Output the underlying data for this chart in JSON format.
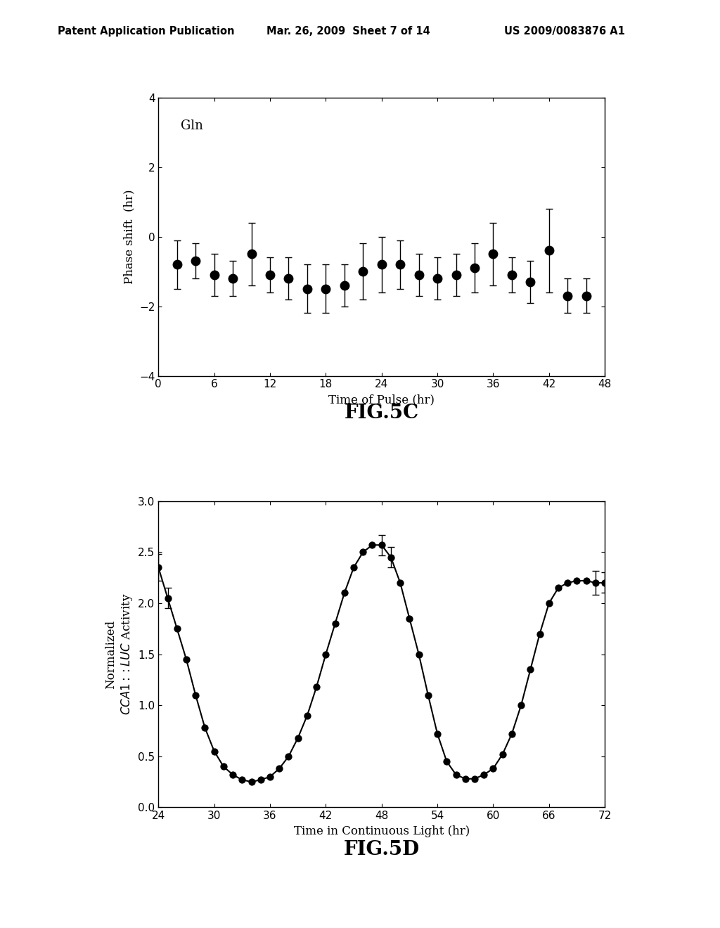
{
  "header_left": "Patent Application Publication",
  "header_mid": "Mar. 26, 2009  Sheet 7 of 14",
  "header_right": "US 2009/0083876 A1",
  "fig5c": {
    "title": "FIG.5C",
    "xlabel": "Time of Pulse (hr)",
    "ylabel": "Phase shift  (hr)",
    "label": "Gln",
    "xlim": [
      0,
      48
    ],
    "ylim": [
      -4,
      4
    ],
    "xticks": [
      0,
      6,
      12,
      18,
      24,
      30,
      36,
      42,
      48
    ],
    "yticks": [
      -4,
      -2,
      0,
      2,
      4
    ],
    "x": [
      2,
      4,
      6,
      8,
      10,
      12,
      14,
      16,
      18,
      20,
      22,
      24,
      26,
      28,
      30,
      32,
      34,
      36,
      38,
      40,
      42,
      44,
      46
    ],
    "y": [
      -0.8,
      -0.7,
      -1.1,
      -1.2,
      -0.5,
      -1.1,
      -1.2,
      -1.5,
      -1.5,
      -1.4,
      -1.0,
      -0.8,
      -0.8,
      -1.1,
      -1.2,
      -1.1,
      -0.9,
      -0.5,
      -1.1,
      -1.3,
      -0.4,
      -1.7,
      -1.7
    ],
    "yerr": [
      0.7,
      0.5,
      0.6,
      0.5,
      0.9,
      0.5,
      0.6,
      0.7,
      0.7,
      0.6,
      0.8,
      0.8,
      0.7,
      0.6,
      0.6,
      0.6,
      0.7,
      0.9,
      0.5,
      0.6,
      1.2,
      0.5,
      0.5
    ]
  },
  "fig5d": {
    "title": "FIG.5D",
    "xlabel": "Time in Continuous Light (hr)",
    "xlim": [
      24,
      72
    ],
    "ylim": [
      0.0,
      3.0
    ],
    "xticks": [
      24,
      30,
      36,
      42,
      48,
      54,
      60,
      66,
      72
    ],
    "yticks": [
      0.0,
      0.5,
      1.0,
      1.5,
      2.0,
      2.5,
      3.0
    ],
    "x": [
      24,
      25,
      26,
      27,
      28,
      29,
      30,
      31,
      32,
      33,
      34,
      35,
      36,
      37,
      38,
      39,
      40,
      41,
      42,
      43,
      44,
      45,
      46,
      47,
      48,
      49,
      50,
      51,
      52,
      53,
      54,
      55,
      56,
      57,
      58,
      59,
      60,
      61,
      62,
      63,
      64,
      65,
      66,
      67,
      68,
      69,
      70,
      71,
      72
    ],
    "y": [
      2.35,
      2.05,
      1.75,
      1.45,
      1.1,
      0.78,
      0.55,
      0.4,
      0.32,
      0.27,
      0.25,
      0.27,
      0.3,
      0.38,
      0.5,
      0.68,
      0.9,
      1.18,
      1.5,
      1.8,
      2.1,
      2.35,
      2.5,
      2.57,
      2.57,
      2.45,
      2.2,
      1.85,
      1.5,
      1.1,
      0.72,
      0.45,
      0.32,
      0.28,
      0.28,
      0.32,
      0.38,
      0.52,
      0.72,
      1.0,
      1.35,
      1.7,
      2.0,
      2.15,
      2.2,
      2.22,
      2.22,
      2.2,
      2.2
    ],
    "yerr_indices": [
      0,
      1,
      24,
      25,
      47,
      48
    ],
    "yerr_vals": [
      2.35,
      2.05,
      2.57,
      2.45,
      2.2,
      2.2
    ],
    "yerr_errs": [
      0.13,
      0.1,
      0.1,
      0.1,
      0.12,
      0.1
    ]
  }
}
